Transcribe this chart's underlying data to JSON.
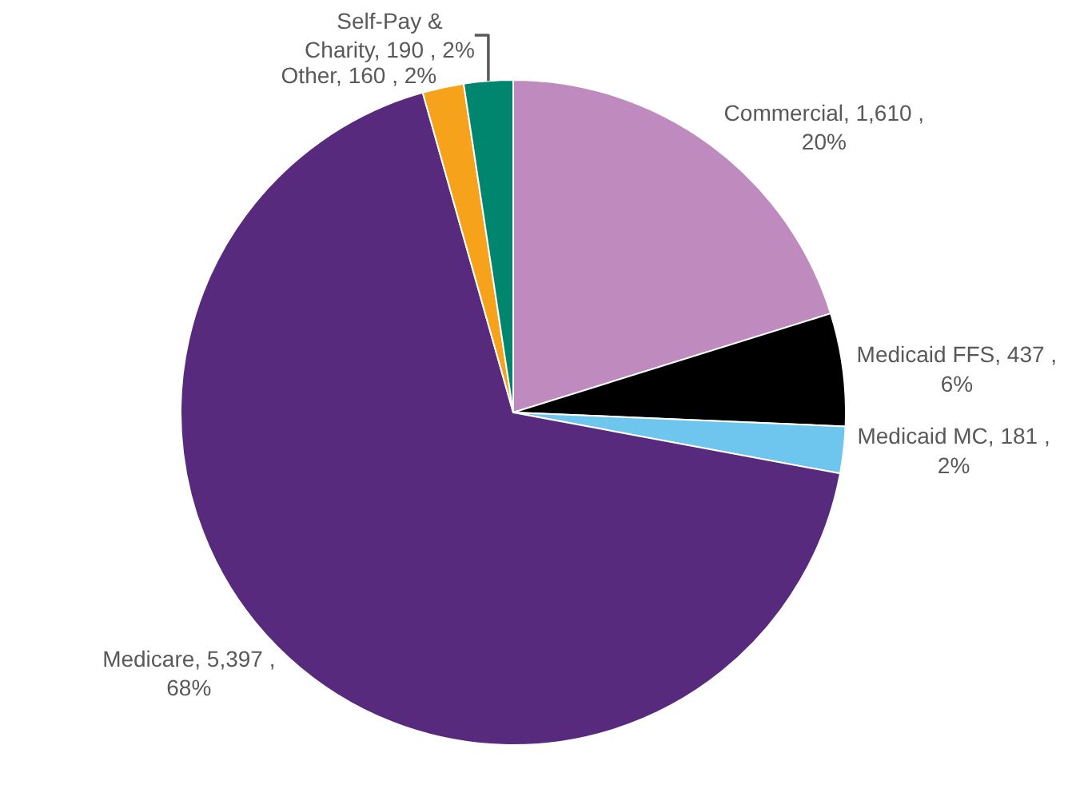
{
  "chart_data": {
    "type": "pie",
    "categories": [
      "Commercial",
      "Medicaid FFS",
      "Medicaid MC",
      "Medicare",
      "Other",
      "Self-Pay & Charity"
    ],
    "values": [
      1610,
      437,
      181,
      5397,
      160,
      190
    ],
    "value_labels": [
      "1,610 , 20%",
      "437 , 6%",
      "181 , 2%",
      "5,397 , 68%",
      "160 , 2%",
      "190 , 2%"
    ],
    "colors": [
      "#bf8bbf",
      "#000000",
      "#6ec6ef",
      "#582a7e",
      "#f7a21b",
      "#00856f"
    ],
    "legend": false
  }
}
